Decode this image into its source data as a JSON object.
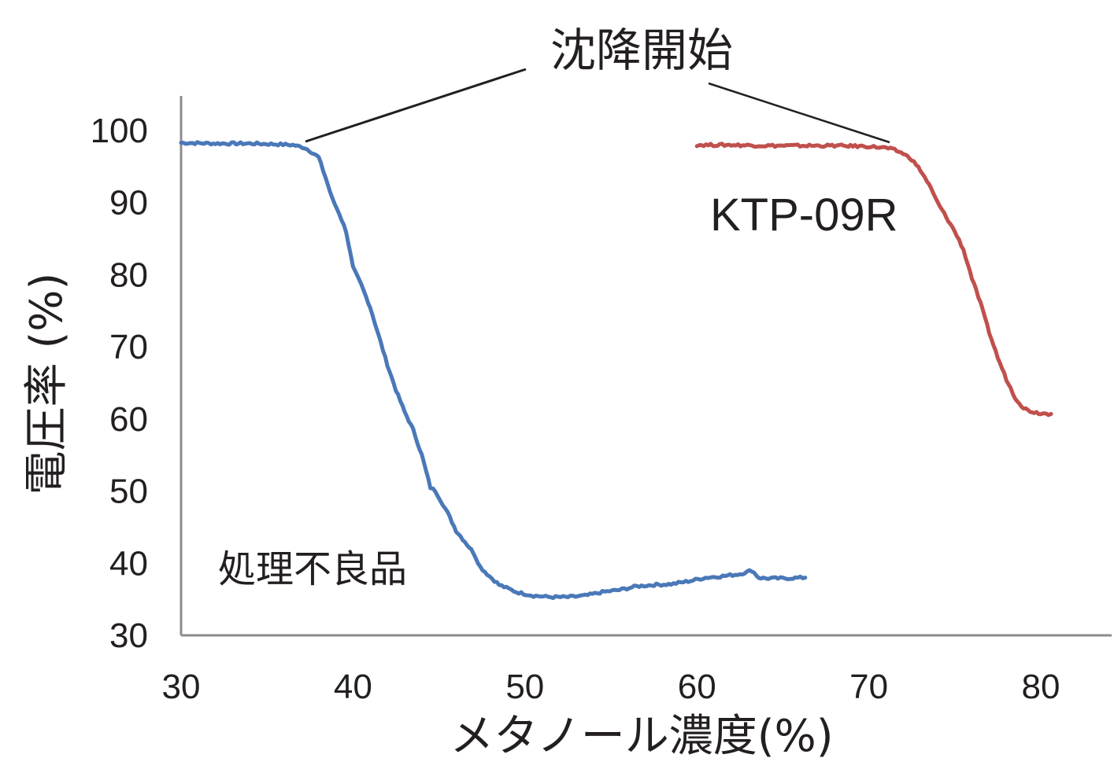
{
  "chart_data": {
    "type": "line",
    "title": "",
    "xlabel": "メタノール濃度(%)",
    "ylabel": "電圧率 (%)",
    "xlim": [
      30,
      80
    ],
    "ylim": [
      30,
      100
    ],
    "xticks": [
      "30",
      "40",
      "50",
      "60",
      "70",
      "80"
    ],
    "yticks": [
      "30",
      "40",
      "50",
      "60",
      "70",
      "80",
      "90",
      "100"
    ],
    "grid": false,
    "annotations": {
      "onset": "沈降開始",
      "series_labels": [
        "処理不良品",
        "KTP-09R"
      ]
    },
    "series": [
      {
        "name": "処理不良品",
        "color": "#4a78b8",
        "x": [
          30,
          32,
          34,
          35.5,
          36.5,
          37.2,
          37.6,
          38.0,
          38.4,
          38.8,
          39.2,
          39.6,
          40.0,
          40.5,
          41.0,
          41.5,
          42.0,
          42.5,
          43.0,
          43.5,
          44.0,
          44.5,
          44.8,
          45.5,
          46.0,
          46.5,
          47.0,
          47.4,
          47.8,
          48.5,
          49.5,
          50.5,
          51.5,
          52.5,
          53.5,
          54.5,
          55.5,
          56.5,
          57.5,
          58.5,
          59.5,
          60.5,
          61.5,
          62.5,
          63.2,
          63.6,
          64.0,
          65.0,
          66.3
        ],
        "y": [
          98.3,
          98.2,
          98.2,
          98.1,
          98.0,
          97.6,
          97.0,
          96.3,
          93.5,
          90.5,
          88.5,
          86.0,
          81.0,
          78.5,
          75.5,
          71.5,
          67.5,
          64.0,
          61.0,
          58.5,
          55.0,
          50.5,
          50.0,
          47.0,
          44.5,
          43.0,
          41.5,
          39.5,
          38.5,
          37.0,
          36.0,
          35.5,
          35.3,
          35.3,
          35.5,
          36.0,
          36.3,
          36.8,
          37.0,
          37.1,
          37.5,
          38.0,
          38.2,
          38.5,
          39.0,
          38.0,
          37.9,
          37.9,
          38.0
        ]
      },
      {
        "name": "KTP-09R",
        "color": "#c0504d",
        "x": [
          60,
          62,
          64,
          66,
          68,
          70,
          71.0,
          71.5,
          72.0,
          72.5,
          73.0,
          73.5,
          74.0,
          74.5,
          75.0,
          75.5,
          76.0,
          76.5,
          77.0,
          77.5,
          78.0,
          78.5,
          79.0,
          79.5,
          80.0,
          80.6
        ],
        "y": [
          98.0,
          98.0,
          97.9,
          97.9,
          97.9,
          97.8,
          97.6,
          97.3,
          96.8,
          96.0,
          94.5,
          92.5,
          90.0,
          88.0,
          86.0,
          83.5,
          79.5,
          76.0,
          72.0,
          68.5,
          65.5,
          63.0,
          61.5,
          61.0,
          60.8,
          60.7
        ]
      }
    ]
  }
}
